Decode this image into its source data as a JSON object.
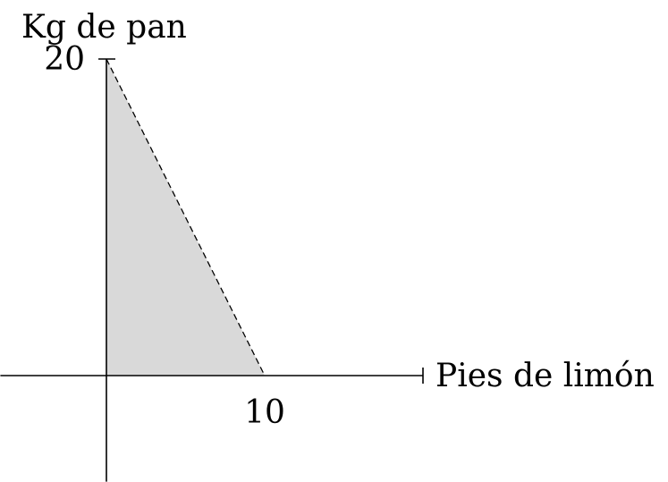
{
  "chart_data": {
    "type": "area",
    "title": "",
    "xlabel": "Pies de limón",
    "ylabel": "Kg de pan",
    "x_ticks": [
      {
        "value": 10,
        "label": "10"
      }
    ],
    "y_ticks": [
      {
        "value": 20,
        "label": "20"
      }
    ],
    "x": [
      0,
      10
    ],
    "y": [
      20,
      0
    ],
    "xlim": [
      -6.7,
      20
    ],
    "ylim": [
      -6.7,
      20
    ],
    "grid": false,
    "line_style": "dashed",
    "colors": {
      "fill": "#d9d9d9",
      "line": "#000000",
      "axis": "#000000"
    }
  }
}
